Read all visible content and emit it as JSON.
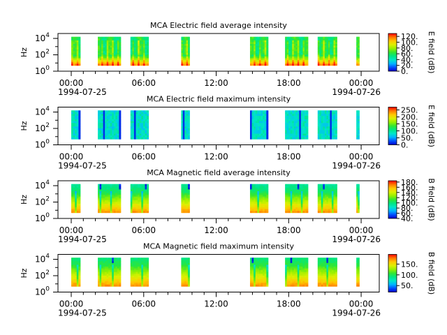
{
  "figure": {
    "x_tick_labels": [
      "00:00",
      "06:00",
      "12:00",
      "18:00",
      "00:00"
    ],
    "x_tick_hours": [
      0,
      6,
      12,
      18,
      24
    ],
    "date_start": "1994-07-25",
    "date_end": "1994-07-26",
    "palette": [
      "#0000c8",
      "#0050ff",
      "#00b4ff",
      "#00e6c8",
      "#00e682",
      "#32e632",
      "#96f000",
      "#dcf000",
      "#ffc800",
      "#ff7800",
      "#ff0000"
    ]
  },
  "chart_data": [
    {
      "type": "heatmap",
      "title": "MCA  Electric field average intensity",
      "ylabel": "Hz",
      "y_scale": "log",
      "y_tick_labels": [
        [
          "10",
          "0"
        ],
        [
          "10",
          "2"
        ],
        [
          "10",
          "4"
        ]
      ],
      "y_tick_values": [
        1,
        100,
        10000
      ],
      "colorbar_label": "E field (dB)",
      "colorbar_range": [
        0,
        130
      ],
      "colorbar_ticks": [
        0,
        20,
        40,
        60,
        80,
        100,
        120
      ],
      "colorbar_tick_labels": [
        "0.",
        "20.",
        "40.",
        "60.",
        "80.",
        "100.",
        "120."
      ],
      "data_intervals_hours": [
        [
          0.0,
          0.75
        ],
        [
          2.2,
          4.1
        ],
        [
          4.9,
          6.4
        ],
        [
          9.1,
          9.8
        ],
        [
          14.8,
          16.3
        ],
        [
          17.7,
          19.6
        ],
        [
          20.4,
          22.0
        ],
        [
          23.6,
          23.85
        ]
      ],
      "pattern": "avg_e"
    },
    {
      "type": "heatmap",
      "title": "MCA  Electric field maximum intensity",
      "ylabel": "Hz",
      "y_scale": "log",
      "y_tick_labels": [
        [
          "10",
          "0"
        ],
        [
          "10",
          "2"
        ],
        [
          "10",
          "4"
        ]
      ],
      "y_tick_values": [
        1,
        100,
        10000
      ],
      "colorbar_label": "E field (dB)",
      "colorbar_range": [
        0,
        270
      ],
      "colorbar_ticks": [
        0,
        50,
        100,
        150,
        200,
        250
      ],
      "colorbar_tick_labels": [
        "0.",
        "50.",
        "100.",
        "150.",
        "200.",
        "250."
      ],
      "data_intervals_hours": [
        [
          0.0,
          0.75
        ],
        [
          2.2,
          4.1
        ],
        [
          4.9,
          6.4
        ],
        [
          9.1,
          9.8
        ],
        [
          14.8,
          16.3
        ],
        [
          17.7,
          19.6
        ],
        [
          20.4,
          22.0
        ],
        [
          23.6,
          23.85
        ]
      ],
      "pattern": "max_e"
    },
    {
      "type": "heatmap",
      "title": "MCA  Magnetic field average intensity",
      "ylabel": "Hz",
      "y_scale": "log",
      "y_tick_labels": [
        [
          "10",
          "0"
        ],
        [
          "10",
          "2"
        ],
        [
          "10",
          "4"
        ]
      ],
      "y_tick_values": [
        1,
        100,
        10000
      ],
      "colorbar_label": "B field (dB)",
      "colorbar_range": [
        40,
        185
      ],
      "colorbar_ticks": [
        40,
        60,
        80,
        100,
        120,
        140,
        160,
        180
      ],
      "colorbar_tick_labels": [
        "40.",
        "60.",
        "80.",
        "100.",
        "120.",
        "140.",
        "160.",
        "180."
      ],
      "data_intervals_hours": [
        [
          0.0,
          0.75
        ],
        [
          2.2,
          4.1
        ],
        [
          4.9,
          6.4
        ],
        [
          9.1,
          9.8
        ],
        [
          14.8,
          16.3
        ],
        [
          17.7,
          19.6
        ],
        [
          20.4,
          22.0
        ],
        [
          23.6,
          23.85
        ]
      ],
      "pattern": "avg_b"
    },
    {
      "type": "heatmap",
      "title": "MCA  Magnetic field maximum intensity",
      "ylabel": "Hz",
      "y_scale": "log",
      "y_tick_labels": [
        [
          "10",
          "0"
        ],
        [
          "10",
          "2"
        ],
        [
          "10",
          "4"
        ]
      ],
      "y_tick_values": [
        1,
        100,
        10000
      ],
      "colorbar_label": "B field (dB)",
      "colorbar_range": [
        20,
        195
      ],
      "colorbar_ticks": [
        50,
        100,
        150
      ],
      "colorbar_tick_labels": [
        "50.",
        "100.",
        "150."
      ],
      "data_intervals_hours": [
        [
          0.0,
          0.75
        ],
        [
          2.2,
          4.1
        ],
        [
          4.9,
          6.4
        ],
        [
          9.1,
          9.8
        ],
        [
          14.8,
          16.3
        ],
        [
          17.7,
          19.6
        ],
        [
          20.4,
          22.0
        ],
        [
          23.6,
          23.85
        ]
      ],
      "pattern": "max_b"
    }
  ]
}
